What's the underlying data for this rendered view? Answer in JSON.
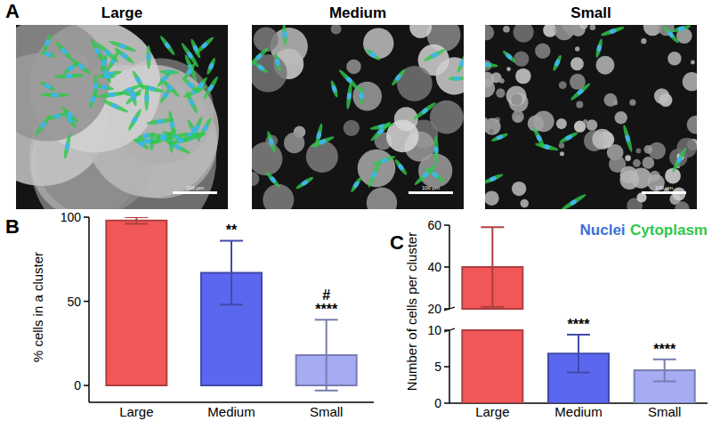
{
  "panel_a": {
    "label": "A",
    "images": [
      {
        "title": "Large",
        "scale_bar": "100 µm"
      },
      {
        "title": "Medium",
        "scale_bar": "100 µm"
      },
      {
        "title": "Small",
        "scale_bar": "100 µm"
      }
    ],
    "legend": [
      {
        "name": "Nuclei",
        "color": "#3b6fd8"
      },
      {
        "name": "Cytoplasm",
        "color": "#2ec84a"
      }
    ]
  },
  "chart_data": [
    {
      "type": "bar",
      "panel": "B",
      "y_label": "% cells in a cluster",
      "categories": [
        "Large",
        "Medium",
        "Small"
      ],
      "values": [
        98,
        67,
        18
      ],
      "errors": [
        2,
        19,
        21
      ],
      "colors": [
        "#f25757",
        "#5b67ee",
        "#a6acf4"
      ],
      "ylim": [
        -10,
        100
      ],
      "yticks": [
        0,
        50,
        100
      ],
      "annotations": [
        {
          "x": "Medium",
          "text": "**"
        },
        {
          "x": "Small",
          "text": "****"
        },
        {
          "x": "Small",
          "text": "#"
        }
      ]
    },
    {
      "type": "bar",
      "panel": "C",
      "y_label": "Number of cells per cluster",
      "categories": [
        "Large",
        "Medium",
        "Small"
      ],
      "values": [
        40,
        6.8,
        4.5
      ],
      "errors": [
        19,
        2.6,
        1.5
      ],
      "colors": [
        "#f25757",
        "#5b67ee",
        "#a6acf4"
      ],
      "ylim": [
        0,
        60
      ],
      "axis_break": [
        10,
        20
      ],
      "yticks": [
        0,
        5,
        10,
        20,
        40,
        60
      ],
      "annotations": [
        {
          "x": "Medium",
          "text": "****"
        },
        {
          "x": "Small",
          "text": "****"
        }
      ]
    }
  ]
}
